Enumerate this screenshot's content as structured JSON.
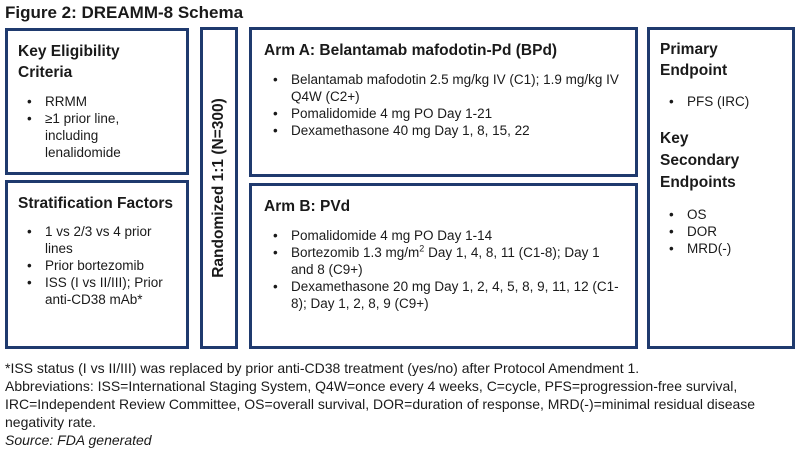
{
  "figure_title": "Figure 2: DREAMM-8 Schema",
  "eligibility": {
    "title": "Key Eligibility Criteria",
    "items": [
      "RRMM",
      "≥1 prior line, including lenalidomide"
    ]
  },
  "stratification": {
    "title": "Stratification Factors",
    "items": [
      "1 vs 2/3 vs 4 prior lines",
      "Prior bortezomib",
      "ISS (I vs II/III); Prior anti-CD38 mAb*"
    ]
  },
  "randomization": {
    "label": "Randomized 1:1 (N=300)"
  },
  "arm_a": {
    "title": "Arm A: Belantamab mafodotin-Pd (BPd)",
    "items": [
      "Belantamab mafodotin 2.5 mg/kg IV (C1); 1.9 mg/kg IV Q4W (C2+)",
      "Pomalidomide 4 mg PO Day 1-21",
      "Dexamethasone 40 mg Day 1, 8, 15, 22"
    ]
  },
  "arm_b": {
    "title": "Arm B: PVd",
    "items": [
      "Pomalidomide 4 mg PO Day 1-14"
    ],
    "bortezomib": {
      "pre": "Bortezomib 1.3 mg/m",
      "sup": "2",
      "post": " Day 1, 4, 8, 11 (C1-8); Day 1 and 8 (C9+)"
    },
    "items_after": [
      "Dexamethasone 20 mg Day 1, 2, 4, 5, 8, 9, 11, 12 (C1-8); Day 1, 2, 8, 9 (C9+)"
    ]
  },
  "endpoints": {
    "primary_title": "Primary Endpoint",
    "primary_items": [
      "PFS (IRC)"
    ],
    "secondary_title": "Key Secondary Endpoints",
    "secondary_items": [
      "OS",
      "DOR",
      "MRD(-)"
    ]
  },
  "footnotes": {
    "note": "*ISS status (I vs II/III) was replaced by prior anti-CD38 treatment (yes/no) after Protocol Amendment 1.",
    "abbreviations": "Abbreviations: ISS=International Staging System, Q4W=once every 4 weeks, C=cycle, PFS=progression-free survival, IRC=Independent Review Committee, OS=overall survival, DOR=duration of response, MRD(-)=minimal residual disease negativity rate.",
    "source": "Source: FDA generated"
  }
}
